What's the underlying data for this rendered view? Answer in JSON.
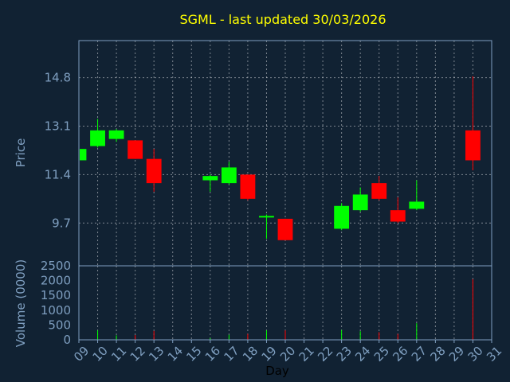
{
  "chart_data": [
    {
      "type": "candlestick",
      "title": "SGML - last updated 30/03/2026",
      "ylabel": "Price",
      "ylim": [
        8.2,
        16.1
      ],
      "yticks": [
        9.7,
        11.4,
        13.1,
        14.8
      ],
      "grid": true,
      "colors": {
        "up": "#00ff00",
        "down": "#ff0000",
        "text": "#7f9fc0",
        "title": "#ffff00",
        "background": "#112233"
      },
      "candles": [
        {
          "day": 9,
          "open": 11.9,
          "high": 12.3,
          "low": 11.85,
          "close": 12.3
        },
        {
          "day": 10,
          "open": 12.4,
          "high": 13.35,
          "low": 12.35,
          "close": 12.95
        },
        {
          "day": 11,
          "open": 12.65,
          "high": 13.0,
          "low": 12.55,
          "close": 12.95
        },
        {
          "day": 12,
          "open": 12.6,
          "high": 12.6,
          "low": 11.95,
          "close": 11.95
        },
        {
          "day": 13,
          "open": 11.95,
          "high": 12.3,
          "low": 10.8,
          "close": 11.1
        },
        {
          "day": 16,
          "open": 11.2,
          "high": 11.4,
          "low": 10.8,
          "close": 11.35
        },
        {
          "day": 17,
          "open": 11.1,
          "high": 11.85,
          "low": 11.05,
          "close": 11.65
        },
        {
          "day": 18,
          "open": 11.4,
          "high": 11.4,
          "low": 10.5,
          "close": 10.55
        },
        {
          "day": 19,
          "open": 9.9,
          "high": 10.0,
          "low": 9.15,
          "close": 9.95
        },
        {
          "day": 20,
          "open": 9.85,
          "high": 9.85,
          "low": 9.1,
          "close": 9.1
        },
        {
          "day": 23,
          "open": 9.5,
          "high": 10.4,
          "low": 9.45,
          "close": 10.3
        },
        {
          "day": 24,
          "open": 10.15,
          "high": 10.95,
          "low": 10.1,
          "close": 10.7
        },
        {
          "day": 25,
          "open": 11.1,
          "high": 11.35,
          "low": 10.5,
          "close": 10.55
        },
        {
          "day": 26,
          "open": 10.15,
          "high": 10.6,
          "low": 9.7,
          "close": 9.75
        },
        {
          "day": 27,
          "open": 10.2,
          "high": 11.2,
          "low": 10.15,
          "close": 10.45
        },
        {
          "day": 30,
          "open": 12.95,
          "high": 14.85,
          "low": 11.55,
          "close": 11.9
        }
      ]
    },
    {
      "type": "bar",
      "ylabel": "Volume (0000)",
      "xlabel": "Day",
      "ylim": [
        0,
        2500
      ],
      "yticks": [
        0,
        500,
        1000,
        1500,
        2000,
        2500
      ],
      "xticks": [
        "09",
        "10",
        "11",
        "12",
        "13",
        "14",
        "15",
        "16",
        "17",
        "18",
        "19",
        "20",
        "21",
        "22",
        "23",
        "24",
        "25",
        "26",
        "27",
        "28",
        "29",
        "30",
        "31"
      ],
      "bars": [
        {
          "day": 9,
          "value": 0,
          "dir": "up"
        },
        {
          "day": 10,
          "value": 320,
          "dir": "up"
        },
        {
          "day": 11,
          "value": 150,
          "dir": "up"
        },
        {
          "day": 12,
          "value": 160,
          "dir": "down"
        },
        {
          "day": 13,
          "value": 300,
          "dir": "down"
        },
        {
          "day": 16,
          "value": 60,
          "dir": "up"
        },
        {
          "day": 17,
          "value": 170,
          "dir": "up"
        },
        {
          "day": 18,
          "value": 200,
          "dir": "down"
        },
        {
          "day": 19,
          "value": 320,
          "dir": "up"
        },
        {
          "day": 20,
          "value": 320,
          "dir": "down"
        },
        {
          "day": 23,
          "value": 330,
          "dir": "up"
        },
        {
          "day": 24,
          "value": 290,
          "dir": "up"
        },
        {
          "day": 25,
          "value": 260,
          "dir": "down"
        },
        {
          "day": 26,
          "value": 200,
          "dir": "down"
        },
        {
          "day": 27,
          "value": 560,
          "dir": "up"
        },
        {
          "day": 30,
          "value": 2050,
          "dir": "down"
        }
      ]
    }
  ]
}
